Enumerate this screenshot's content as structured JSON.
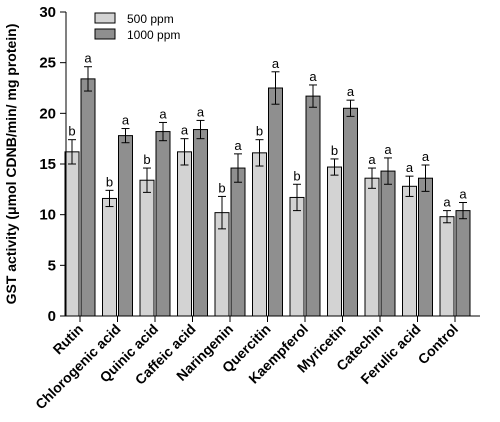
{
  "chart_data": {
    "type": "bar",
    "ylabel": "GST activity (μmol CDNB/min/ mg protein)",
    "ylim": [
      0,
      30
    ],
    "yticks": [
      0,
      5,
      10,
      15,
      20,
      25,
      30
    ],
    "grid": false,
    "legend_position": "top-left",
    "categories": [
      "Rutin",
      "Chlorogenic  acid",
      "Quinic acid",
      "Caffeic acid",
      "Naringenin",
      "Quercitin",
      "Kaempferol",
      "Myricetin",
      "Catechin",
      "Ferulic acid",
      "Control"
    ],
    "series": [
      {
        "name": "500 ppm",
        "color": "#d3d3d3",
        "values": [
          16.2,
          11.6,
          13.4,
          16.2,
          10.2,
          16.1,
          11.7,
          14.7,
          13.6,
          12.8,
          9.8
        ],
        "errors": [
          1.2,
          0.8,
          1.2,
          1.3,
          1.6,
          1.3,
          1.3,
          0.8,
          1.0,
          1.0,
          0.6
        ],
        "sig_labels": [
          "b",
          "b",
          "b",
          "a",
          "b",
          "b",
          "b",
          "b",
          "a",
          "a",
          "a"
        ]
      },
      {
        "name": "1000 ppm",
        "color": "#8f8f8f",
        "values": [
          23.4,
          17.8,
          18.2,
          18.4,
          14.6,
          22.5,
          21.7,
          20.5,
          14.3,
          13.6,
          10.4
        ],
        "errors": [
          1.2,
          0.7,
          0.9,
          0.9,
          1.4,
          1.6,
          1.1,
          0.8,
          1.3,
          1.3,
          0.8
        ],
        "sig_labels": [
          "a",
          "a",
          "a",
          "a",
          "a",
          "a",
          "a",
          "a",
          "a",
          "a",
          "a"
        ]
      }
    ]
  }
}
